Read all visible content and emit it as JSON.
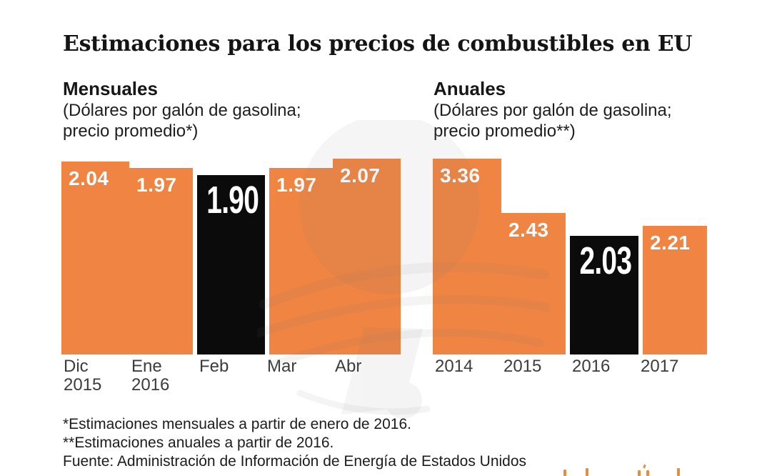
{
  "title": "Estimaciones para los precios de combustibles en EU",
  "chart_data": [
    {
      "type": "bar",
      "header": "Mensuales",
      "subtitle_lines": [
        "(Dólares por galón de gasolina;",
        "precio promedio*)"
      ],
      "categories": [
        "Dic 2015",
        "Ene 2016",
        "Feb",
        "Mar",
        "Abr"
      ],
      "categories_lines": [
        [
          "Dic",
          "2015"
        ],
        [
          "Ene",
          "2016"
        ],
        [
          "Feb"
        ],
        [
          "Mar"
        ],
        [
          "Abr"
        ]
      ],
      "values": [
        2.04,
        1.97,
        1.9,
        1.97,
        2.07
      ],
      "value_labels": [
        "2.04",
        "1.97",
        "1.90",
        "1.97",
        "2.07"
      ],
      "highlight_index": 2,
      "highlighted_category": "Feb",
      "ylim": [
        0,
        2.07
      ],
      "grid": false,
      "legend": "none",
      "value_label_position": "inside-top"
    },
    {
      "type": "bar",
      "header": "Anuales",
      "subtitle_lines": [
        "(Dólares por galón de gasolina;",
        "precio promedio**)"
      ],
      "categories": [
        "2014",
        "2015",
        "2016",
        "2017"
      ],
      "categories_lines": [
        [
          "2014"
        ],
        [
          "2015"
        ],
        [
          "2016"
        ],
        [
          "2017"
        ]
      ],
      "values": [
        3.36,
        2.43,
        2.03,
        2.21
      ],
      "value_labels": [
        "3.36",
        "2.43",
        "2.03",
        "2.21"
      ],
      "highlight_index": 2,
      "highlighted_category": "2016",
      "ylim": [
        0,
        3.36
      ],
      "grid": false,
      "legend": "none",
      "value_label_position": "inside-top"
    }
  ],
  "footnotes": [
    "*Estimaciones mensuales a partir de enero de 2016.",
    "**Estimaciones anuales a partir de 2016."
  ],
  "source": "Fuente: Administración de Información de Energía de Estados Unidos",
  "colors": {
    "bar_orange": "#EF8443",
    "bar_black": "#0B0B0B",
    "value_label_white": "#FFFFFF",
    "title_text": "#141414",
    "axis_text": "#3C3C3C",
    "watermark_gray": "#ECECEC",
    "clipped_watermark_orange": "#EA8C3C"
  }
}
